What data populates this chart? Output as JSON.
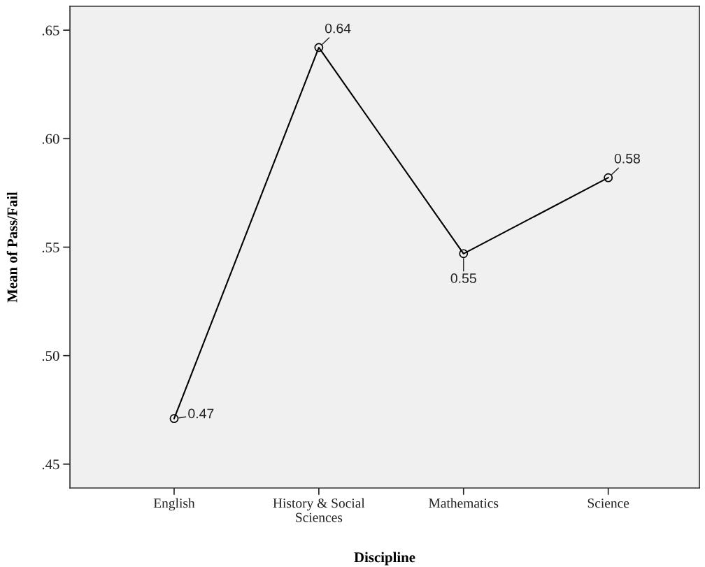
{
  "chart_data": {
    "type": "line",
    "xlabel": "Discipline",
    "ylabel": "Mean of Pass/Fail",
    "categories": [
      "English",
      "History & Social\nSciences",
      "Mathematics",
      "Science"
    ],
    "series": [
      {
        "color": "#000000",
        "values": [
          0.471,
          0.642,
          0.547,
          0.582
        ],
        "value_labels": [
          "0.47",
          "0.64",
          "0.55",
          "0.58"
        ]
      }
    ],
    "ylim": [
      0.439,
      0.661
    ],
    "yticks": [
      {
        "value": 0.45,
        "label": ".45"
      },
      {
        "value": 0.5,
        "label": ".50"
      },
      {
        "value": 0.55,
        "label": ".55"
      },
      {
        "value": 0.6,
        "label": ".60"
      },
      {
        "value": 0.65,
        "label": ".65"
      }
    ],
    "marker": "circle",
    "line_style": "solid",
    "grid": false,
    "legend": false
  }
}
